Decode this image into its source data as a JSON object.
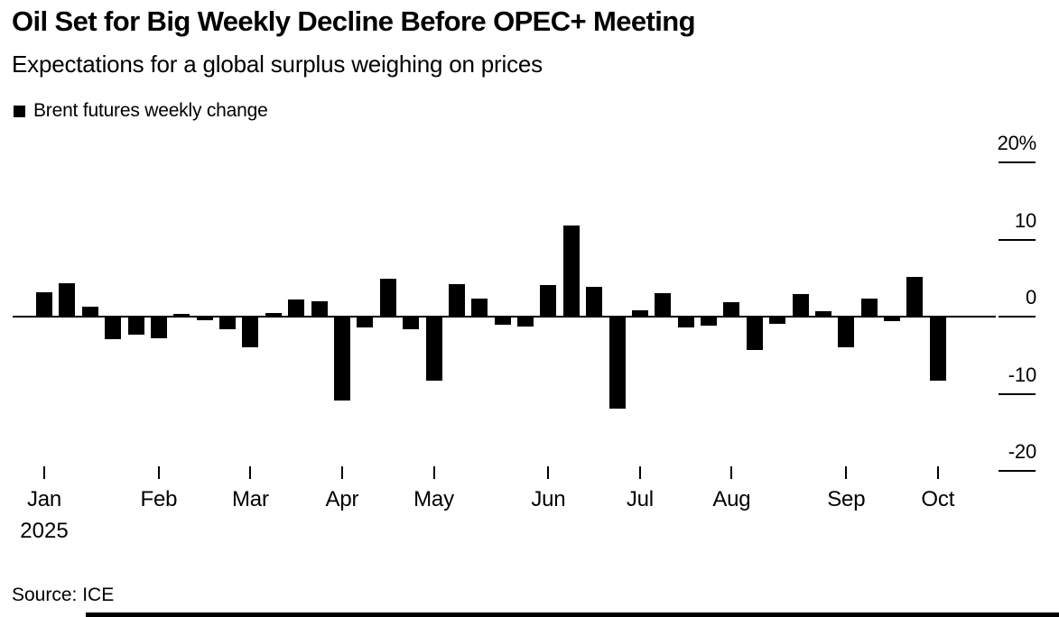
{
  "header": {
    "title": "Oil Set for Big Weekly Decline Before OPEC+ Meeting",
    "subtitle": "Expectations for a global surplus weighing on prices"
  },
  "legend": {
    "label": "Brent futures weekly change",
    "swatch_color": "#000000"
  },
  "source": "Source: ICE",
  "chart_data": {
    "type": "bar",
    "title": "Oil Set for Big Weekly Decline Before OPEC+ Meeting",
    "subtitle": "Expectations for a global surplus weighing on prices",
    "series_name": "Brent futures weekly change",
    "unit": "%",
    "bar_color": "#000000",
    "background_color": "#ffffff",
    "grid": "off",
    "legend_position": "top-left",
    "x_tick_labels": [
      "Jan",
      "Feb",
      "Mar",
      "Apr",
      "May",
      "Jun",
      "Jul",
      "Aug",
      "Sep",
      "Oct"
    ],
    "x_year_label": "2025",
    "month_start_week_index": [
      0,
      5,
      9,
      13,
      17,
      22,
      26,
      30,
      35,
      39
    ],
    "values": [
      3.2,
      4.3,
      1.3,
      -2.8,
      -2.2,
      -2.7,
      0.3,
      -0.4,
      -1.5,
      -3.8,
      0.5,
      2.2,
      2.0,
      -10.8,
      -1.3,
      4.9,
      -1.5,
      -8.2,
      4.2,
      2.4,
      -0.9,
      -1.2,
      4.1,
      11.8,
      3.9,
      -11.8,
      0.8,
      3.1,
      -1.3,
      -1.0,
      1.9,
      -4.2,
      -0.8,
      2.9,
      0.7,
      -3.8,
      2.3,
      -0.5,
      5.2,
      -8.2
    ],
    "y_ticks": [
      {
        "label": "20%",
        "value": 20
      },
      {
        "label": "10",
        "value": 10
      },
      {
        "label": "0",
        "value": 0
      },
      {
        "label": "-10",
        "value": -10
      },
      {
        "label": "-20",
        "value": -20
      }
    ],
    "ylim": [
      -22,
      22
    ],
    "y_axis_side": "right"
  }
}
